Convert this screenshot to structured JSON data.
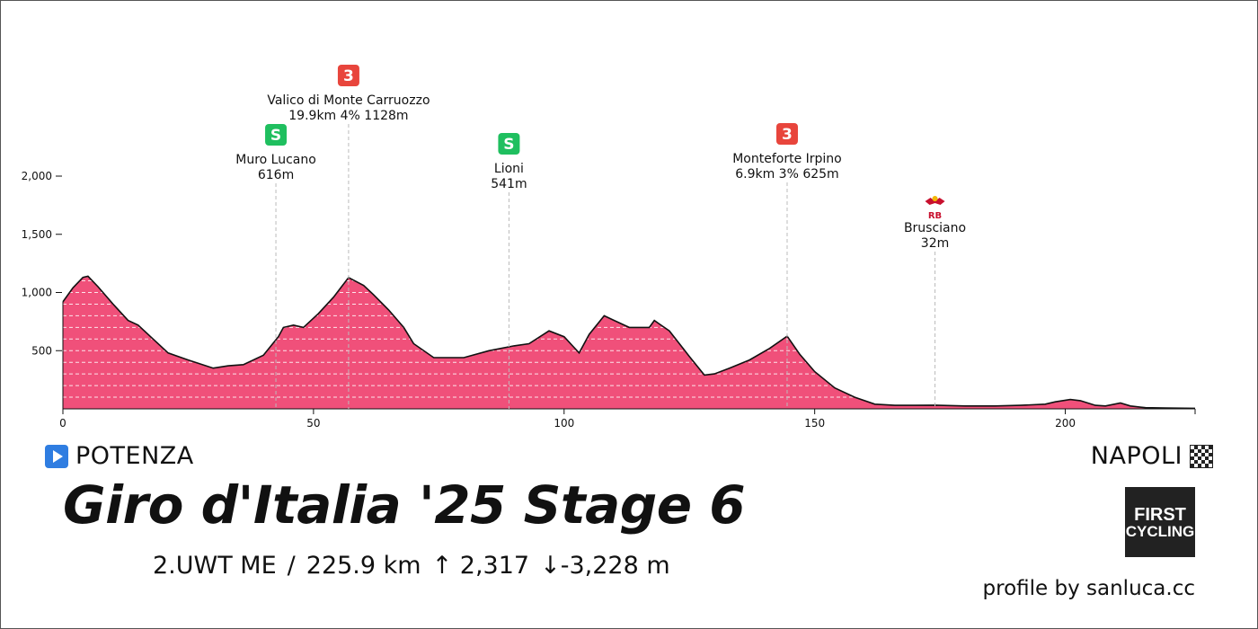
{
  "stage": {
    "title": "Giro d'Italia '25 Stage 6",
    "classification": "2.UWT ME",
    "separator": "/",
    "distance": "225.9 km",
    "ascent": "↑ 2,317",
    "descent": "↓-3,228 m",
    "start": "POTENZA",
    "finish": "NAPOLI",
    "credit": "profile by sanluca.cc",
    "logo_line1": "FIRST",
    "logo_line2": "CYCLING"
  },
  "colors": {
    "profile_fill": "#f0507a",
    "kom_badge": "#e8453c",
    "sprint_badge": "#1fbf5f",
    "bonus_badge": "#c8102e",
    "start_icon": "#2f7de1"
  },
  "chart_data": {
    "type": "area",
    "title": "",
    "xlabel": "",
    "ylabel": "",
    "xlim": [
      0,
      225.9
    ],
    "ylim": [
      0,
      2000
    ],
    "x_ticks": [
      0,
      50,
      100,
      150,
      200
    ],
    "x_tick_labels": [
      "0",
      "50",
      "100",
      "150",
      "200"
    ],
    "y_ticks": [
      500,
      1000,
      1500,
      2000
    ],
    "y_tick_labels": [
      "500",
      "1,000",
      "1,500",
      "2,000"
    ],
    "grid": "horizontal dashed inside area",
    "x": [
      0,
      2,
      4,
      5,
      7,
      10,
      13,
      15,
      18,
      21,
      25,
      30,
      33,
      36,
      40,
      43,
      44,
      46,
      48,
      51,
      54,
      57,
      60,
      62,
      65,
      68,
      70,
      74,
      80,
      85,
      90,
      93,
      97,
      100,
      103,
      105,
      108,
      110,
      113,
      117,
      118,
      119,
      121,
      125,
      128,
      130,
      133,
      137,
      141,
      144.5,
      147,
      150,
      154,
      158,
      162,
      166,
      170,
      174,
      180,
      186,
      191,
      196,
      198,
      201,
      203,
      206,
      208,
      211,
      213,
      216,
      220,
      225.9
    ],
    "y": [
      920,
      1040,
      1130,
      1140,
      1050,
      900,
      760,
      720,
      600,
      480,
      420,
      350,
      370,
      380,
      460,
      620,
      700,
      720,
      700,
      820,
      960,
      1128,
      1060,
      980,
      850,
      700,
      560,
      440,
      440,
      500,
      541,
      560,
      670,
      620,
      480,
      640,
      800,
      760,
      700,
      700,
      760,
      730,
      670,
      450,
      290,
      300,
      350,
      420,
      520,
      625,
      470,
      320,
      180,
      100,
      40,
      30,
      30,
      32,
      25,
      25,
      30,
      40,
      60,
      80,
      70,
      30,
      25,
      50,
      25,
      10,
      8,
      5
    ],
    "annotations": [
      {
        "name": "Muro Lucano",
        "detail": "616m",
        "km": 42.5,
        "badge": "S",
        "badge_type": "sprint"
      },
      {
        "name": "Valico di Monte Carruozzo",
        "detail": "19.9km 4% 1128m",
        "km": 57,
        "badge": "3",
        "badge_type": "kom"
      },
      {
        "name": "Lioni",
        "detail": "541m",
        "km": 89,
        "badge": "S",
        "badge_type": "sprint"
      },
      {
        "name": "Monteforte Irpino",
        "detail": "6.9km 3% 625m",
        "km": 144.5,
        "badge": "3",
        "badge_type": "kom"
      },
      {
        "name": "Brusciano",
        "detail": "32m",
        "km": 174,
        "badge": "RB",
        "badge_type": "bonus"
      }
    ]
  }
}
